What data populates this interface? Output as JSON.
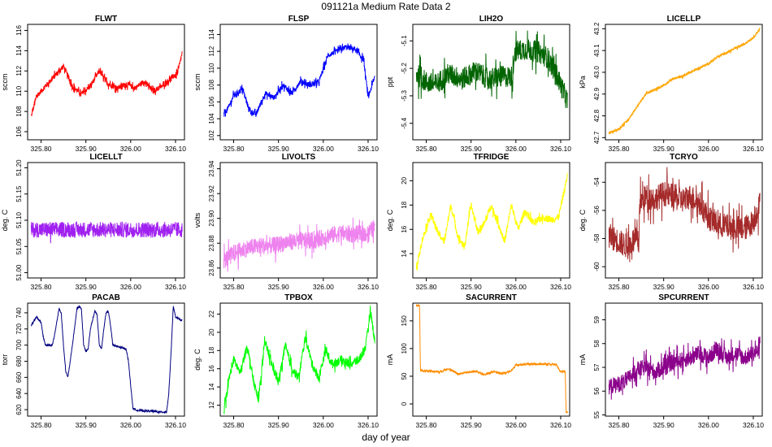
{
  "page": {
    "title": "091121a   Medium Rate Data 2",
    "xlabel": "day of year"
  },
  "chart_data": [
    {
      "name": "FLWT",
      "title": "FLWT",
      "type": "line",
      "ylabel": "sccm",
      "color": "#ff0000",
      "xlim": [
        325.77,
        326.12
      ],
      "ylim": [
        105.2,
        116.6
      ],
      "xticks": [
        "325.80",
        "325.90",
        "326.00",
        "326.10"
      ],
      "yticks": [
        "106",
        "108",
        "110",
        "112",
        "114",
        "116"
      ],
      "band": [
        0.25,
        1.6
      ],
      "x": [
        325.778,
        325.79,
        325.81,
        325.83,
        325.85,
        325.87,
        325.89,
        325.91,
        325.93,
        325.95,
        325.97,
        325.99,
        326.01,
        326.03,
        326.05,
        326.07,
        326.09,
        326.105,
        326.115
      ],
      "y": [
        107.5,
        109.5,
        110.5,
        111.5,
        112.5,
        110.5,
        109.7,
        110.5,
        112.0,
        110.7,
        110.3,
        110.7,
        110.3,
        111.0,
        110.0,
        110.5,
        111.3,
        111.8,
        113.8
      ]
    },
    {
      "name": "FLSP",
      "title": "FLSP",
      "type": "line",
      "ylabel": "sccm",
      "color": "#0000ff",
      "xlim": [
        325.77,
        326.12
      ],
      "ylim": [
        101.5,
        115.2
      ],
      "xticks": [
        "325.80",
        "325.90",
        "326.00",
        "326.10"
      ],
      "yticks": [
        "102",
        "104",
        "106",
        "108",
        "110",
        "112",
        "114"
      ],
      "band": [
        0.3,
        2.0
      ],
      "x": [
        325.778,
        325.79,
        325.8,
        325.82,
        325.835,
        325.85,
        325.87,
        325.89,
        325.91,
        325.93,
        325.95,
        325.97,
        325.99,
        326.01,
        326.03,
        326.05,
        326.07,
        326.09,
        326.1,
        326.115
      ],
      "y": [
        104.5,
        105.5,
        106.8,
        107.5,
        105.0,
        104.5,
        107.0,
        106.5,
        108.0,
        107.0,
        108.5,
        108.0,
        108.3,
        111.5,
        112.0,
        112.5,
        112.3,
        111.0,
        106.5,
        109.0
      ]
    },
    {
      "name": "LIH2O",
      "title": "LIH2O",
      "type": "line",
      "ylabel": "ppt",
      "color": "#006400",
      "xlim": [
        325.77,
        326.12
      ],
      "ylim": [
        -5.46,
        -5.04
      ],
      "xticks": [
        "325.80",
        "325.90",
        "326.00",
        "326.10"
      ],
      "yticks": [
        "-5.4",
        "-5.3",
        "-5.2",
        "-5.1"
      ],
      "band": [
        0.04,
        0.7
      ],
      "x": [
        325.778,
        325.8,
        325.82,
        325.85,
        325.88,
        325.91,
        325.94,
        325.97,
        325.994,
        325.996,
        326.02,
        326.05,
        326.07,
        326.09,
        326.11,
        326.115
      ],
      "y": [
        -5.22,
        -5.25,
        -5.26,
        -5.22,
        -5.24,
        -5.21,
        -5.24,
        -5.23,
        -5.23,
        -5.14,
        -5.13,
        -5.14,
        -5.16,
        -5.22,
        -5.3,
        -5.32
      ]
    },
    {
      "name": "LICELLP",
      "title": "LICELLP",
      "type": "line",
      "ylabel": "kPa",
      "color": "#ffa500",
      "xlim": [
        325.77,
        326.12
      ],
      "ylim": [
        42.69,
        43.22
      ],
      "xticks": [
        "325.80",
        "325.90",
        "326.00",
        "326.10"
      ],
      "yticks": [
        "42.7",
        "42.8",
        "42.9",
        "43.0",
        "43.1",
        "43.2"
      ],
      "band": [
        0.006,
        0.25
      ],
      "x": [
        325.778,
        325.8,
        325.82,
        325.84,
        325.86,
        325.88,
        325.9,
        325.92,
        325.94,
        325.96,
        325.98,
        326.0,
        326.02,
        326.04,
        326.06,
        326.08,
        326.1,
        326.115
      ],
      "y": [
        42.72,
        42.74,
        42.78,
        42.84,
        42.9,
        42.92,
        42.94,
        42.97,
        42.98,
        43.0,
        43.02,
        43.04,
        43.07,
        43.09,
        43.11,
        43.13,
        43.16,
        43.2
      ]
    },
    {
      "name": "LICELLT",
      "title": "LICELLT",
      "type": "line",
      "ylabel": "deg. C",
      "color": "#a020f0",
      "xlim": [
        325.77,
        326.12
      ],
      "ylim": [
        50.99,
        51.21
      ],
      "xticks": [
        "325.80",
        "325.90",
        "326.00",
        "326.10"
      ],
      "yticks": [
        "51.00",
        "51.05",
        "51.10",
        "51.15",
        "51.20"
      ],
      "band": [
        0.015,
        0.05
      ],
      "x": [
        325.778,
        326.115
      ],
      "y": [
        51.082,
        51.082
      ]
    },
    {
      "name": "LIVOLTS",
      "title": "LIVOLTS",
      "type": "line",
      "ylabel": "volts",
      "color": "#ee82ee",
      "xlim": [
        325.77,
        326.12
      ],
      "ylim": [
        23.852,
        23.945
      ],
      "xticks": [
        "325.80",
        "325.90",
        "326.00",
        "326.10"
      ],
      "yticks": [
        "23.86",
        "23.88",
        "23.90",
        "23.92",
        "23.94"
      ],
      "band": [
        0.007,
        0.4
      ],
      "x": [
        325.778,
        325.8,
        325.83,
        325.86,
        325.89,
        325.92,
        325.95,
        325.98,
        326.01,
        326.04,
        326.07,
        326.1,
        326.115
      ],
      "y": [
        23.866,
        23.872,
        23.876,
        23.878,
        23.878,
        23.881,
        23.882,
        23.882,
        23.886,
        23.888,
        23.887,
        23.888,
        23.893
      ]
    },
    {
      "name": "TFRIDGE",
      "title": "TFRIDGE",
      "type": "line",
      "ylabel": "deg. C",
      "color": "#ffff00",
      "xlim": [
        325.77,
        326.12
      ],
      "ylim": [
        12.0,
        21.5
      ],
      "xticks": [
        "325.80",
        "325.90",
        "326.00",
        "326.10"
      ],
      "yticks": [
        "14",
        "16",
        "18",
        "20"
      ],
      "band": [
        0.3,
        0.4
      ],
      "x": [
        325.778,
        325.79,
        325.81,
        325.825,
        325.84,
        325.855,
        325.87,
        325.885,
        325.9,
        325.915,
        325.93,
        325.945,
        325.96,
        325.975,
        325.99,
        326.005,
        326.02,
        326.04,
        326.06,
        326.08,
        326.095,
        326.11,
        326.115
      ],
      "y": [
        12.8,
        15.0,
        17.3,
        15.8,
        15.0,
        18.0,
        15.5,
        14.5,
        18.0,
        15.8,
        16.5,
        18.0,
        16.5,
        15.0,
        18.0,
        16.0,
        17.5,
        16.5,
        17.0,
        16.8,
        17.0,
        19.5,
        20.5
      ]
    },
    {
      "name": "TCRYO",
      "title": "TCRYO",
      "type": "line",
      "ylabel": "deg. C",
      "color": "#a52a2a",
      "xlim": [
        325.77,
        326.12
      ],
      "ylim": [
        -60.8,
        -52.6
      ],
      "xticks": [
        "325.80",
        "325.90",
        "326.00",
        "326.10"
      ],
      "yticks": [
        "-60",
        "-58",
        "-56",
        "-54"
      ],
      "band": [
        0.9,
        0.9
      ],
      "x": [
        325.778,
        325.8,
        325.82,
        325.835,
        325.845,
        325.846,
        325.86,
        325.88,
        325.9,
        325.92,
        325.94,
        325.96,
        325.98,
        326.0,
        326.02,
        326.05,
        326.08,
        326.1,
        326.115
      ],
      "y": [
        -57.8,
        -58.2,
        -58.6,
        -58.0,
        -58.4,
        -55.5,
        -55.0,
        -55.2,
        -54.8,
        -55.0,
        -55.3,
        -55.0,
        -55.5,
        -56.5,
        -57.0,
        -57.2,
        -57.3,
        -56.8,
        -55.5
      ]
    },
    {
      "name": "PACAB",
      "title": "PACAB",
      "type": "line",
      "ylabel": "torr",
      "color": "#000080",
      "xlim": [
        325.77,
        326.12
      ],
      "ylim": [
        612,
        752
      ],
      "xticks": [
        "325.80",
        "325.90",
        "326.00",
        "326.10"
      ],
      "yticks": [
        "620",
        "640",
        "660",
        "680",
        "700",
        "720",
        "740"
      ],
      "band": [
        1.2,
        0.05
      ],
      "x": [
        325.778,
        325.79,
        325.8,
        325.805,
        325.81,
        325.825,
        325.83,
        325.84,
        325.845,
        325.85,
        325.855,
        325.86,
        325.87,
        325.88,
        325.885,
        325.89,
        325.895,
        325.9,
        325.905,
        325.91,
        325.92,
        325.925,
        325.93,
        325.935,
        325.94,
        325.945,
        325.95,
        325.955,
        325.96,
        325.99,
        325.995,
        326.0,
        326.005,
        326.01,
        326.02,
        326.05,
        326.07,
        326.08,
        326.085,
        326.09,
        326.095,
        326.1,
        326.115
      ],
      "y": [
        725,
        735,
        728,
        710,
        700,
        700,
        712,
        745,
        740,
        700,
        668,
        660,
        700,
        745,
        748,
        745,
        700,
        692,
        695,
        720,
        742,
        738,
        700,
        696,
        720,
        740,
        742,
        725,
        700,
        695,
        680,
        650,
        622,
        620,
        619,
        618,
        617,
        617,
        640,
        690,
        748,
        735,
        730
      ]
    },
    {
      "name": "TPBOX",
      "title": "TPBOX",
      "type": "line",
      "ylabel": "deg. C",
      "color": "#00ff00",
      "xlim": [
        325.77,
        326.12
      ],
      "ylim": [
        10.8,
        23.2
      ],
      "xticks": [
        "325.80",
        "325.90",
        "326.00",
        "326.10"
      ],
      "yticks": [
        "12",
        "14",
        "16",
        "18",
        "20",
        "22"
      ],
      "band": [
        0.5,
        0.6
      ],
      "x": [
        325.778,
        325.79,
        325.8,
        325.815,
        325.83,
        325.845,
        325.855,
        325.87,
        325.885,
        325.9,
        325.915,
        325.93,
        325.945,
        325.96,
        325.975,
        325.99,
        326.005,
        326.02,
        326.04,
        326.06,
        326.08,
        326.095,
        326.105,
        326.115
      ],
      "y": [
        11.2,
        15.0,
        17.0,
        15.5,
        18.5,
        14.5,
        12.5,
        19.0,
        16.5,
        14.5,
        18.5,
        16.0,
        15.0,
        19.5,
        16.5,
        15.0,
        18.0,
        16.5,
        17.0,
        16.5,
        17.0,
        18.5,
        22.5,
        19.0
      ]
    },
    {
      "name": "SACURRENT",
      "title": "SACURRENT",
      "type": "line",
      "ylabel": "mA",
      "color": "#ff8c00",
      "xlim": [
        325.77,
        326.12
      ],
      "ylim": [
        -22,
        182
      ],
      "xticks": [
        "325.80",
        "325.90",
        "326.00",
        "326.10"
      ],
      "yticks": [
        "0",
        "50",
        "100",
        "150"
      ],
      "band": [
        2.0,
        0.15
      ],
      "x": [
        325.778,
        325.785,
        325.787,
        325.8,
        325.83,
        325.85,
        325.87,
        325.89,
        325.91,
        325.93,
        325.95,
        325.97,
        325.99,
        326.0,
        326.03,
        326.06,
        326.09,
        326.1,
        326.11,
        326.112,
        326.115
      ],
      "y": [
        178,
        178,
        60,
        60,
        58,
        64,
        54,
        57,
        59,
        53,
        58,
        55,
        60,
        70,
        72,
        72,
        71,
        58,
        60,
        -15,
        -15
      ]
    },
    {
      "name": "SPCURRENT",
      "title": "SPCURRENT",
      "type": "line",
      "ylabel": "mA",
      "color": "#8b008b",
      "xlim": [
        325.77,
        326.12
      ],
      "ylim": [
        54.95,
        59.7
      ],
      "xticks": [
        "325.80",
        "325.90",
        "326.00",
        "326.10"
      ],
      "yticks": [
        "55",
        "56",
        "57",
        "58",
        "59"
      ],
      "band": [
        0.35,
        0.9
      ],
      "x": [
        325.778,
        325.8,
        325.82,
        325.84,
        325.86,
        325.88,
        325.9,
        325.92,
        325.94,
        325.96,
        325.98,
        326.0,
        326.02,
        326.04,
        326.06,
        326.08,
        326.1,
        326.115
      ],
      "y": [
        56.2,
        56.3,
        56.5,
        56.9,
        57.0,
        56.8,
        57.0,
        57.2,
        57.3,
        57.4,
        57.6,
        57.4,
        57.8,
        57.4,
        57.6,
        57.4,
        57.6,
        57.7
      ]
    }
  ]
}
